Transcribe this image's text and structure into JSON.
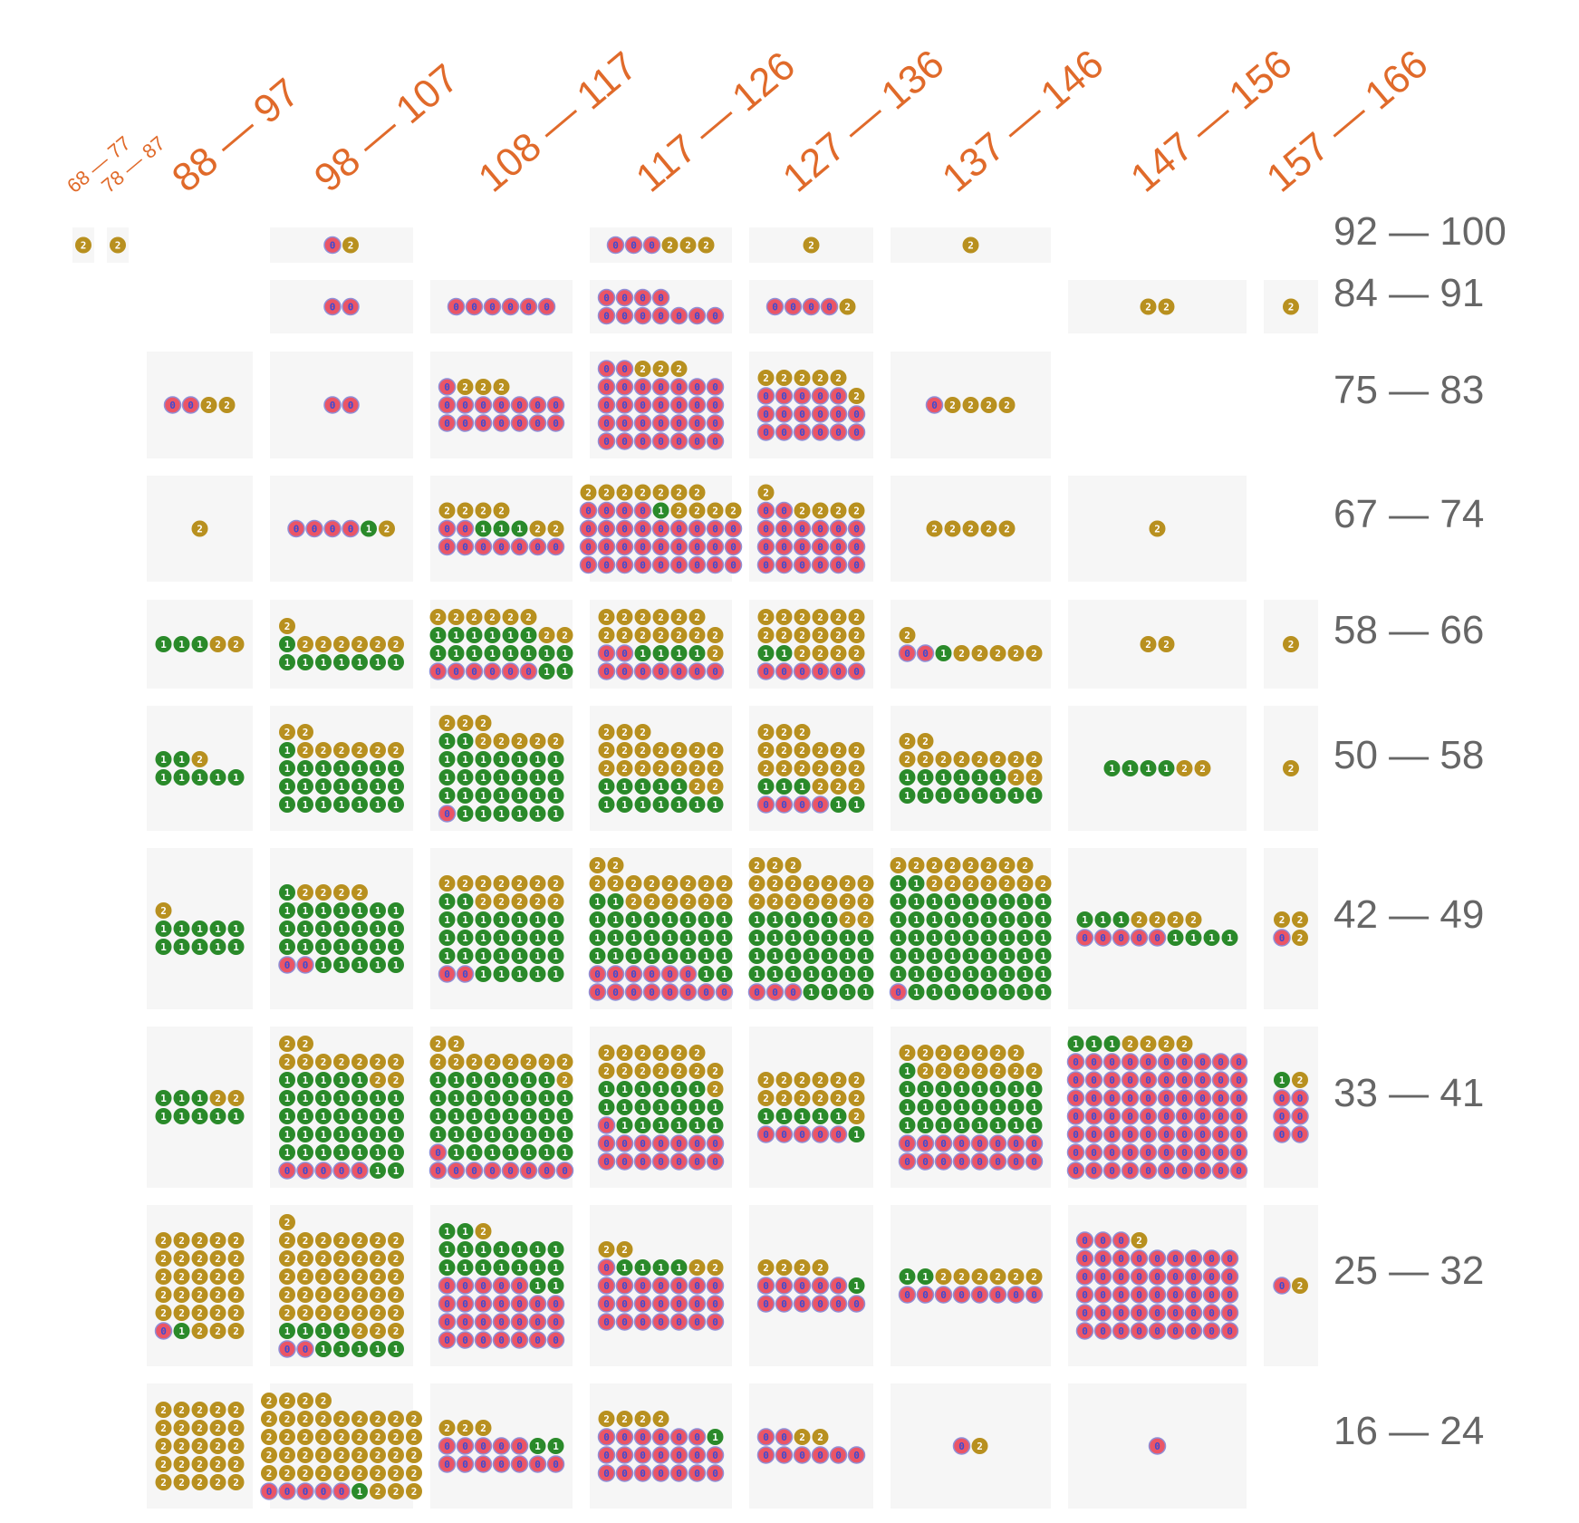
{
  "chart_data": {
    "type": "grid",
    "title": "",
    "xlabel": "",
    "ylabel": "",
    "columns": [
      "68 — 77",
      "78 — 87",
      "88 — 97",
      "98 — 107",
      "108 — 117",
      "117 — 126",
      "127 — 136",
      "137 — 146",
      "147 — 156",
      "157 — 166"
    ],
    "rows": [
      "92 — 100",
      "84 — 91",
      "75 — 83",
      "67 — 74",
      "58 — 66",
      "50 — 58",
      "42 — 49",
      "33 — 41",
      "25 — 32",
      "16 — 24"
    ],
    "categories": [
      "0",
      "1",
      "2"
    ],
    "colors": {
      "0": "#ea5566",
      "1": "#2a8a2a",
      "2": "#b8901f"
    },
    "counts": [
      [
        [
          0,
          0,
          1
        ],
        [
          0,
          0,
          1
        ],
        [
          0,
          0,
          0
        ],
        [
          1,
          0,
          1
        ],
        [
          0,
          0,
          0
        ],
        [
          3,
          0,
          3
        ],
        [
          0,
          0,
          1
        ],
        [
          0,
          0,
          1
        ],
        [
          0,
          0,
          0
        ],
        [
          0,
          0,
          0
        ]
      ],
      [
        [
          0,
          0,
          0
        ],
        [
          0,
          0,
          0
        ],
        [
          0,
          0,
          0
        ],
        [
          2,
          0,
          0
        ],
        [
          6,
          0,
          0
        ],
        [
          11,
          0,
          0
        ],
        [
          4,
          0,
          1
        ],
        [
          0,
          0,
          0
        ],
        [
          0,
          0,
          2
        ],
        [
          0,
          0,
          1
        ]
      ],
      [
        [
          0,
          0,
          0
        ],
        [
          0,
          0,
          0
        ],
        [
          2,
          0,
          2
        ],
        [
          2,
          0,
          0
        ],
        [
          15,
          0,
          3
        ],
        [
          30,
          0,
          3
        ],
        [
          17,
          0,
          6
        ],
        [
          1,
          0,
          4
        ],
        [
          0,
          0,
          0
        ],
        [
          0,
          0,
          0
        ]
      ],
      [
        [
          0,
          0,
          0
        ],
        [
          0,
          0,
          0
        ],
        [
          0,
          0,
          1
        ],
        [
          4,
          1,
          1
        ],
        [
          9,
          3,
          6
        ],
        [
          31,
          1,
          11
        ],
        [
          20,
          0,
          5
        ],
        [
          0,
          0,
          5
        ],
        [
          0,
          0,
          1
        ],
        [
          0,
          0,
          0
        ]
      ],
      [
        [
          0,
          0,
          0
        ],
        [
          0,
          0,
          0
        ],
        [
          0,
          3,
          2
        ],
        [
          0,
          8,
          7
        ],
        [
          6,
          16,
          8
        ],
        [
          9,
          4,
          14
        ],
        [
          6,
          2,
          16
        ],
        [
          2,
          1,
          6
        ],
        [
          0,
          0,
          2
        ],
        [
          0,
          0,
          1
        ]
      ],
      [
        [
          0,
          0,
          0
        ],
        [
          0,
          0,
          0
        ],
        [
          0,
          7,
          1
        ],
        [
          0,
          22,
          8
        ],
        [
          1,
          29,
          8
        ],
        [
          0,
          12,
          19
        ],
        [
          4,
          5,
          18
        ],
        [
          0,
          14,
          12
        ],
        [
          0,
          4,
          2
        ],
        [
          0,
          0,
          1
        ]
      ],
      [
        [
          0,
          0,
          0
        ],
        [
          0,
          0,
          0
        ],
        [
          0,
          10,
          1
        ],
        [
          2,
          27,
          4
        ],
        [
          2,
          28,
          12
        ],
        [
          14,
          28,
          16
        ],
        [
          3,
          30,
          19
        ],
        [
          1,
          55,
          15
        ],
        [
          5,
          7,
          4
        ],
        [
          1,
          0,
          3
        ]
      ],
      [
        [
          0,
          0,
          0
        ],
        [
          0,
          0,
          0
        ],
        [
          0,
          8,
          2
        ],
        [
          5,
          35,
          11
        ],
        [
          9,
          38,
          11
        ],
        [
          15,
          19,
          14
        ],
        [
          5,
          6,
          13
        ],
        [
          16,
          25,
          14
        ],
        [
          70,
          3,
          4
        ],
        [
          6,
          1,
          1
        ]
      ],
      [
        [
          0,
          0,
          0
        ],
        [
          0,
          0,
          0
        ],
        [
          1,
          1,
          28
        ],
        [
          2,
          9,
          39
        ],
        [
          26,
          18,
          1
        ],
        [
          22,
          4,
          4
        ],
        [
          11,
          1,
          4
        ],
        [
          8,
          2,
          6
        ],
        [
          48,
          0,
          1
        ],
        [
          1,
          0,
          1
        ]
      ],
      [
        [
          0,
          0,
          0
        ],
        [
          0,
          0,
          0
        ],
        [
          0,
          0,
          25
        ],
        [
          5,
          1,
          43
        ],
        [
          12,
          2,
          3
        ],
        [
          20,
          1,
          4
        ],
        [
          8,
          0,
          2
        ],
        [
          1,
          0,
          1
        ],
        [
          1,
          0,
          0
        ],
        [
          0,
          0,
          0
        ]
      ]
    ]
  },
  "col_labels": [
    "68 — 77",
    "78 — 87",
    "88 — 97",
    "98 — 107",
    "108 — 117",
    "117 — 126",
    "127 — 136",
    "137 — 146",
    "147 — 156",
    "157 — 166"
  ],
  "row_labels": [
    "92 — 100",
    "84 — 91",
    "75 — 83",
    "67 — 74",
    "58 — 66",
    "50 — 58",
    "42 — 49",
    "33 — 41",
    "25 — 32",
    "16 — 24"
  ]
}
